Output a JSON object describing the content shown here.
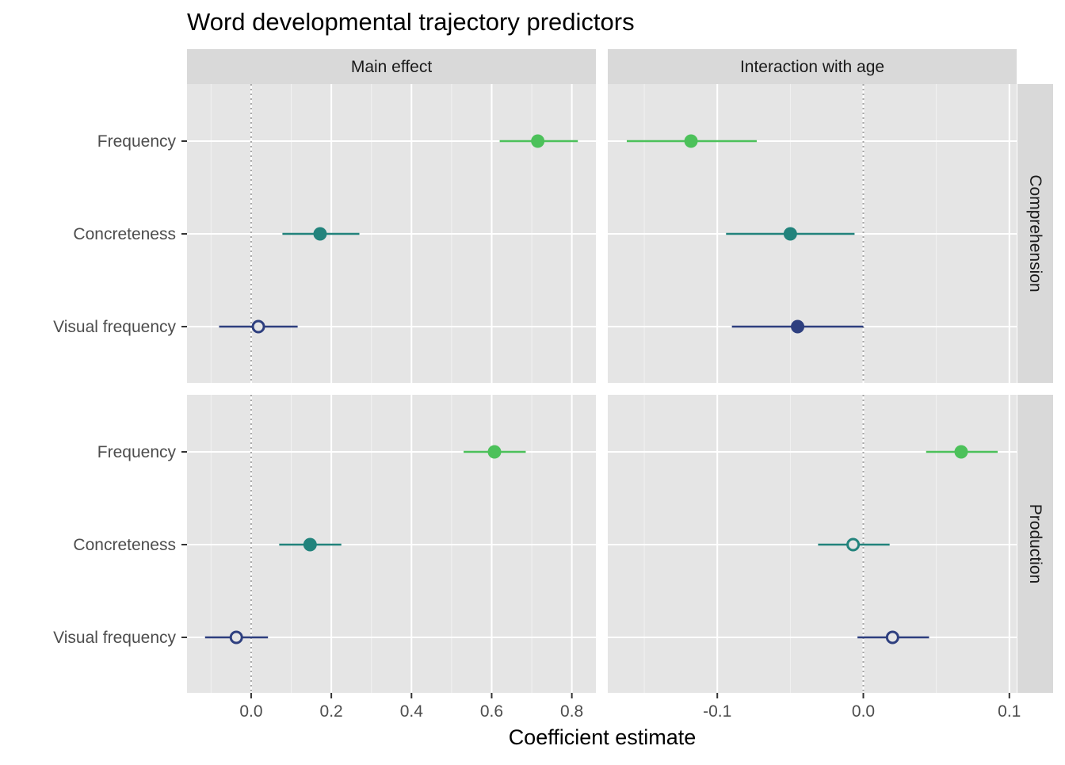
{
  "chart_data": {
    "type": "scatter",
    "title": "Word developmental trajectory predictors",
    "xlabel": "Coefficient estimate",
    "ylabel": "",
    "categories": [
      "Frequency",
      "Concreteness",
      "Visual frequency"
    ],
    "columns": [
      {
        "label": "Main effect",
        "xlim": [
          -0.16,
          0.86
        ],
        "ticks": [
          0.0,
          0.2,
          0.4,
          0.6,
          0.8
        ],
        "tick_labels": [
          "0.0",
          "0.2",
          "0.4",
          "0.6",
          "0.8"
        ]
      },
      {
        "label": "Interaction with age",
        "xlim": [
          -0.175,
          0.105
        ],
        "ticks": [
          -0.1,
          0.0,
          0.1
        ],
        "tick_labels": [
          "-0.1",
          "0.0",
          "0.1"
        ]
      }
    ],
    "rows": [
      {
        "label": "Comprehension",
        "panels": [
          {
            "points": [
              {
                "predictor": "Frequency",
                "estimate": 0.715,
                "lower": 0.62,
                "upper": 0.815,
                "significant": true
              },
              {
                "predictor": "Concreteness",
                "estimate": 0.172,
                "lower": 0.078,
                "upper": 0.27,
                "significant": true
              },
              {
                "predictor": "Visual frequency",
                "estimate": 0.018,
                "lower": -0.08,
                "upper": 0.116,
                "significant": false
              }
            ]
          },
          {
            "points": [
              {
                "predictor": "Frequency",
                "estimate": -0.118,
                "lower": -0.162,
                "upper": -0.073,
                "significant": true
              },
              {
                "predictor": "Concreteness",
                "estimate": -0.05,
                "lower": -0.094,
                "upper": -0.006,
                "significant": true
              },
              {
                "predictor": "Visual frequency",
                "estimate": -0.045,
                "lower": -0.09,
                "upper": 0.0,
                "significant": true
              }
            ]
          }
        ]
      },
      {
        "label": "Production",
        "panels": [
          {
            "points": [
              {
                "predictor": "Frequency",
                "estimate": 0.607,
                "lower": 0.53,
                "upper": 0.685,
                "significant": true
              },
              {
                "predictor": "Concreteness",
                "estimate": 0.147,
                "lower": 0.07,
                "upper": 0.225,
                "significant": true
              },
              {
                "predictor": "Visual frequency",
                "estimate": -0.037,
                "lower": -0.115,
                "upper": 0.042,
                "significant": false
              }
            ]
          },
          {
            "points": [
              {
                "predictor": "Frequency",
                "estimate": 0.067,
                "lower": 0.043,
                "upper": 0.092,
                "significant": true
              },
              {
                "predictor": "Concreteness",
                "estimate": -0.007,
                "lower": -0.031,
                "upper": 0.018,
                "significant": false
              },
              {
                "predictor": "Visual frequency",
                "estimate": 0.02,
                "lower": -0.004,
                "upper": 0.045,
                "significant": false
              }
            ]
          }
        ]
      }
    ],
    "colors": {
      "Frequency": "#4cc15a",
      "Concreteness": "#22837c",
      "Visual frequency": "#2e3f7f"
    },
    "reference_line": 0,
    "grid": true,
    "legend": "none"
  }
}
